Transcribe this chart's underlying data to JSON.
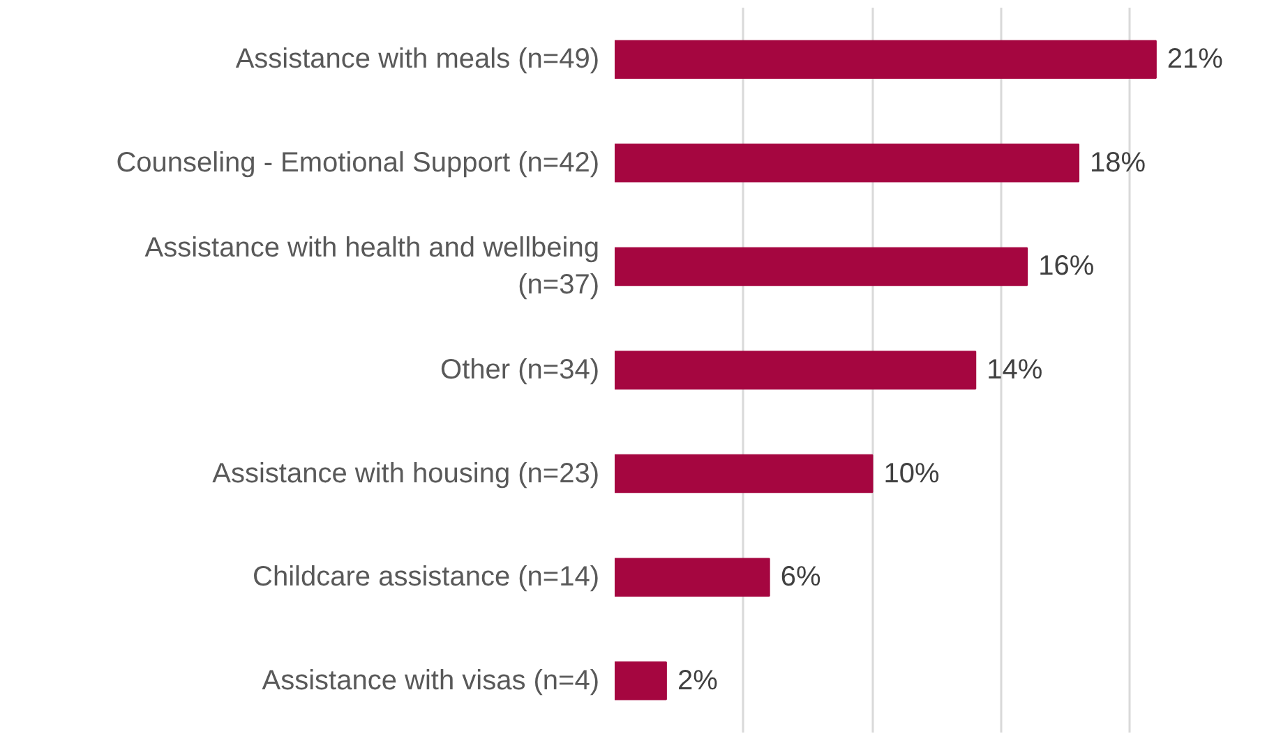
{
  "chart_data": {
    "type": "bar",
    "orientation": "horizontal",
    "categories": [
      "Assistance with meals (n=49)",
      "Counseling - Emotional Support (n=42)",
      "Assistance with health and wellbeing\n(n=37)",
      "Other (n=34)",
      "Assistance with housing (n=23)",
      "Childcare assistance (n=14)",
      "Assistance with visas (n=4)"
    ],
    "values": [
      21,
      18,
      16,
      14,
      10,
      6,
      2
    ],
    "value_labels": [
      "21%",
      "18%",
      "16%",
      "14%",
      "10%",
      "6%",
      "2%"
    ],
    "color": "#a50640",
    "grid": "x",
    "tick_labels": "y"
  }
}
